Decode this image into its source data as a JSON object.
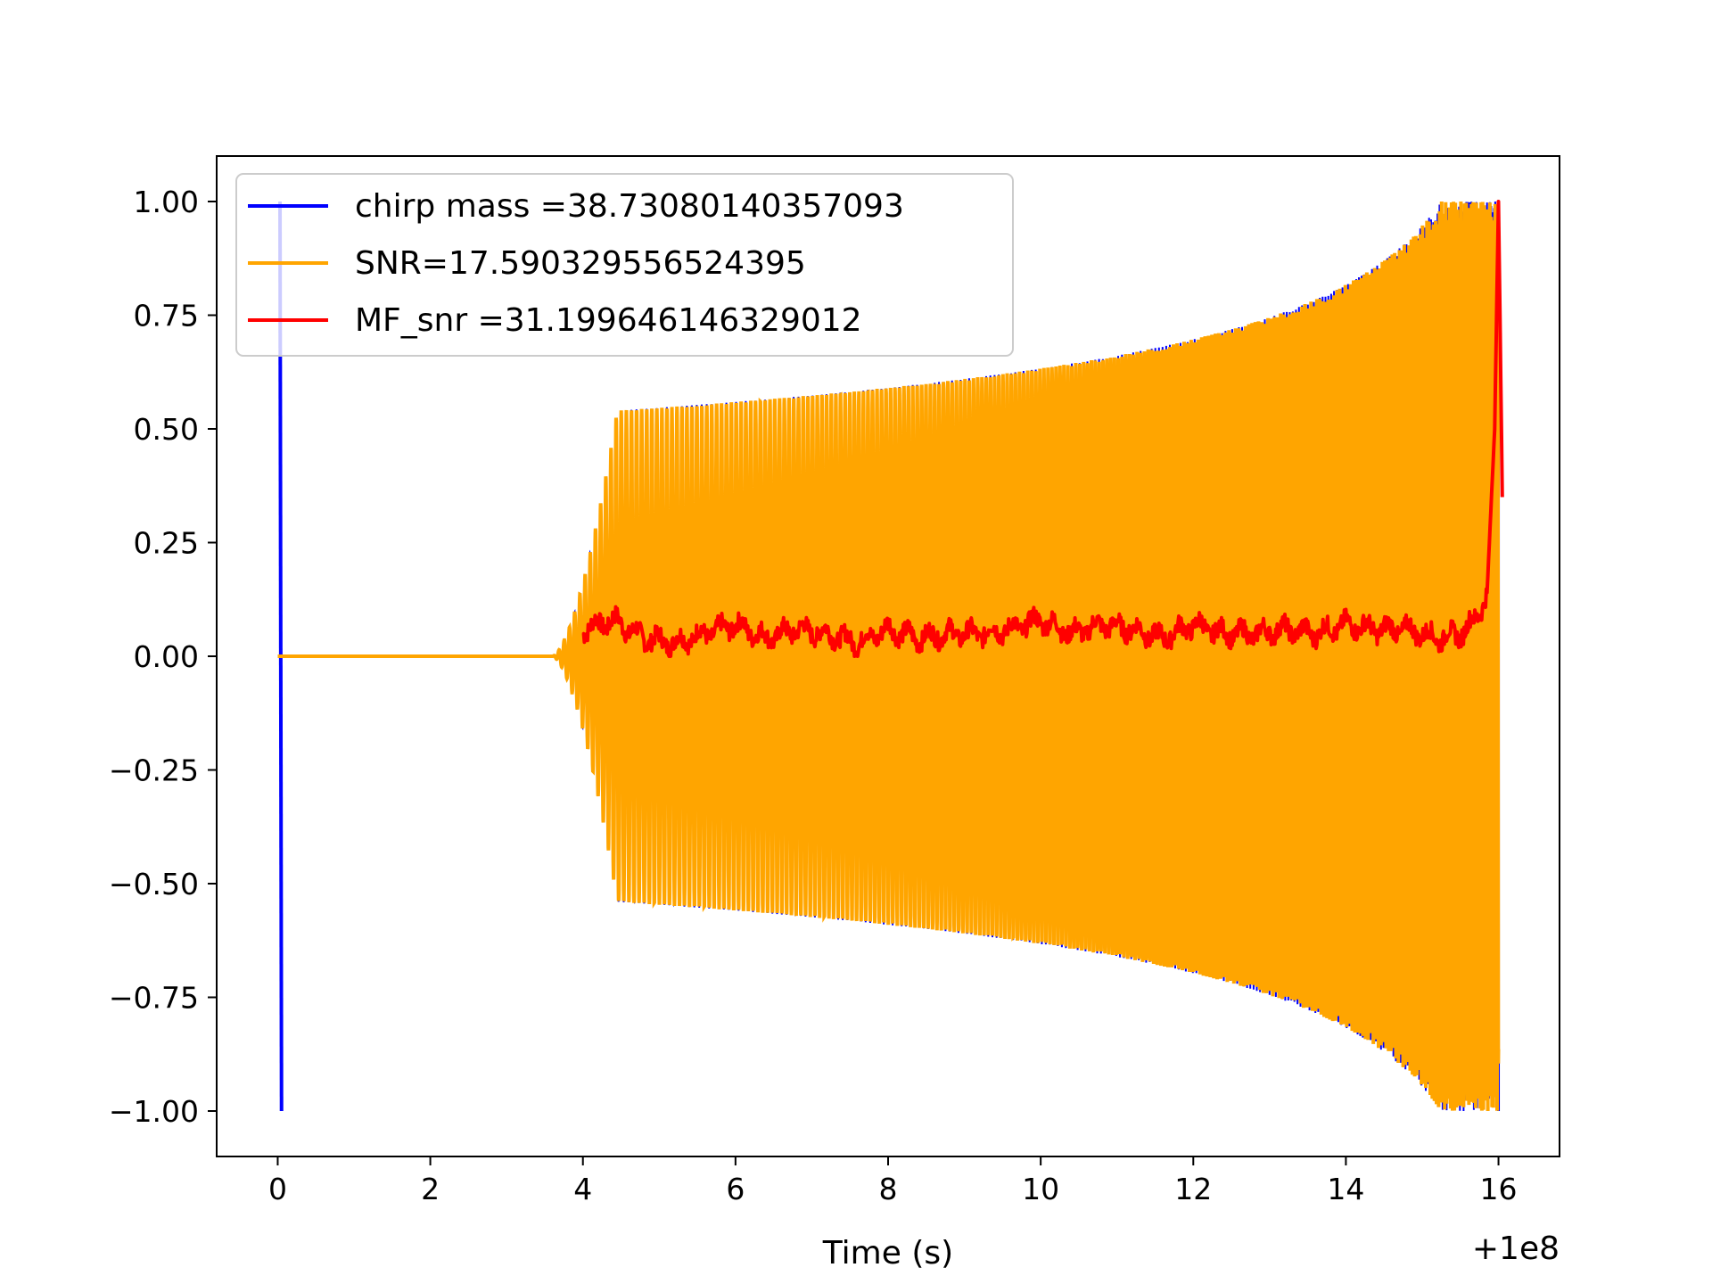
{
  "chart_data": {
    "type": "line",
    "title": "",
    "xlabel": "Time (s)",
    "ylabel": "",
    "x_offset_label": "+1e8",
    "xlim": [
      -0.8,
      16.8
    ],
    "ylim": [
      -1.1,
      1.1
    ],
    "x_ticks": [
      0,
      2,
      4,
      6,
      8,
      10,
      12,
      14,
      16
    ],
    "x_tick_labels": [
      "0",
      "2",
      "4",
      "6",
      "8",
      "10",
      "12",
      "14",
      "16"
    ],
    "y_ticks": [
      1.0,
      0.75,
      0.5,
      0.25,
      0.0,
      -0.25,
      -0.5,
      -0.75,
      -1.0
    ],
    "y_tick_labels": [
      "1.00",
      "0.75",
      "0.50",
      "0.25",
      "0.00",
      "−0.25",
      "−0.50",
      "−0.75",
      "−1.00"
    ],
    "grid": false,
    "legend_position": "upper-left",
    "series": [
      {
        "name": "chirp mass =38.73080140357093",
        "color": "#0000ff",
        "style": "normalized chirp waveform",
        "start_spike_x": 0.03,
        "signal_start_x": 3.6,
        "signal_end_x": 16.0,
        "amplitude_plateau": 0.54,
        "amplitude_at_14": 0.78,
        "amplitude_peak": 1.0
      },
      {
        "name": "SNR=17.590329556524395",
        "color": "#ffa500",
        "style": "normalized chirp waveform (overlaid)",
        "signal_start_x": 3.6,
        "signal_end_x": 16.0,
        "amplitude_plateau": 0.54,
        "amplitude_at_14": 0.78,
        "amplitude_peak": 1.0
      },
      {
        "name": "MF_snr =31.199646146329012",
        "color": "#ff0000",
        "x": [
          4.0,
          4.4,
          4.8,
          5.2,
          5.6,
          6.0,
          6.4,
          6.8,
          7.2,
          7.6,
          8.0,
          8.4,
          8.8,
          9.2,
          9.6,
          10.0,
          10.4,
          10.8,
          11.2,
          11.6,
          12.0,
          12.4,
          12.8,
          13.2,
          13.6,
          14.0,
          14.4,
          14.8,
          15.2,
          15.5,
          15.7,
          15.85,
          15.95,
          16.0,
          16.05
        ],
        "y": [
          0.06,
          0.08,
          0.04,
          0.03,
          0.05,
          0.07,
          0.04,
          0.06,
          0.05,
          0.03,
          0.06,
          0.04,
          0.05,
          0.05,
          0.06,
          0.08,
          0.05,
          0.07,
          0.06,
          0.04,
          0.07,
          0.05,
          0.05,
          0.06,
          0.05,
          0.07,
          0.06,
          0.06,
          0.04,
          0.05,
          0.08,
          0.14,
          0.5,
          1.0,
          0.35
        ]
      }
    ]
  }
}
